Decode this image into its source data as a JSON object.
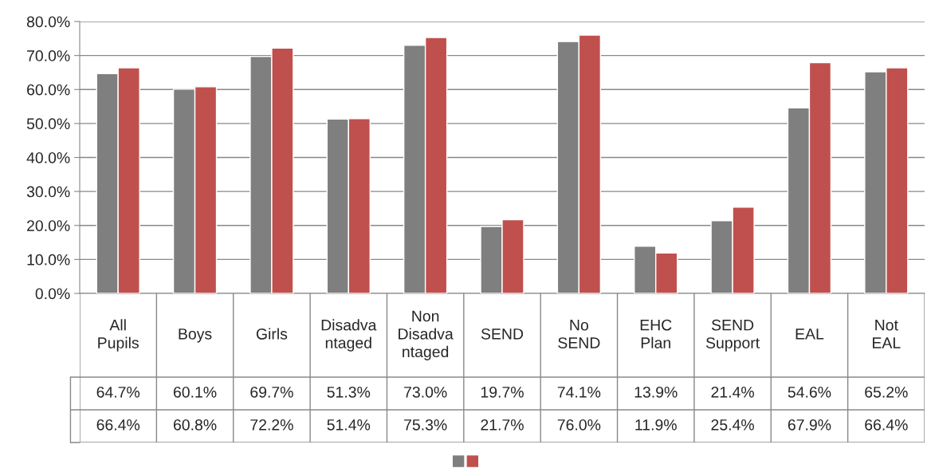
{
  "chart_data": {
    "type": "bar",
    "categories": [
      "All Pupils",
      "Boys",
      "Girls",
      "Disadvantaged",
      "Non Disadvantaged",
      "SEND",
      "No SEND",
      "EHC Plan",
      "SEND Support",
      "EAL",
      "Not EAL"
    ],
    "series": [
      {
        "color": "#7f7f7f",
        "values": [
          64.7,
          60.1,
          69.7,
          51.3,
          73.0,
          19.7,
          74.1,
          13.9,
          21.4,
          54.6,
          65.2
        ],
        "value_labels": [
          "64.7%",
          "60.1%",
          "69.7%",
          "51.3%",
          "73.0%",
          "19.7%",
          "74.1%",
          "13.9%",
          "21.4%",
          "54.6%",
          "65.2%"
        ]
      },
      {
        "color": "#c0504d",
        "values": [
          66.4,
          60.8,
          72.2,
          51.4,
          75.3,
          21.7,
          76.0,
          11.9,
          25.4,
          67.9,
          66.4
        ],
        "value_labels": [
          "66.4%",
          "60.8%",
          "72.2%",
          "51.4%",
          "75.3%",
          "21.7%",
          "76.0%",
          "11.9%",
          "25.4%",
          "67.9%",
          "66.4%"
        ]
      }
    ],
    "ylim": [
      0,
      80
    ],
    "yticks": [
      {
        "value": 0,
        "label": "0.0%"
      },
      {
        "value": 10,
        "label": "10.0%"
      },
      {
        "value": 20,
        "label": "20.0%"
      },
      {
        "value": 30,
        "label": "30.0%"
      },
      {
        "value": 40,
        "label": "40.0%"
      },
      {
        "value": 50,
        "label": "50.0%"
      },
      {
        "value": 60,
        "label": "60.0%"
      },
      {
        "value": 70,
        "label": "70.0%"
      },
      {
        "value": 80,
        "label": "80.0%"
      }
    ],
    "grid": "y"
  }
}
